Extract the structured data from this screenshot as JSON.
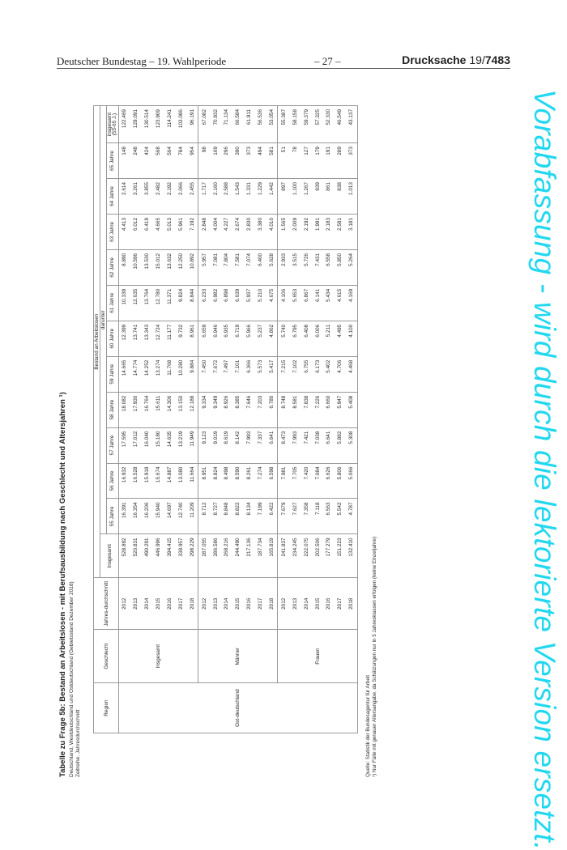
{
  "page_header": {
    "left": "Deutscher Bundestag – 19. Wahlperiode",
    "center": "– 27 –",
    "right_label": "Drucksache",
    "right_number_prefix": "19/",
    "right_number": "7483"
  },
  "watermark": "Vorabfassung - wird durch die lektorierte Version ersetzt.",
  "table_title": "Tabelle zu Frage 5b: Bestand an Arbeitslosen - mit Berufsausbildung nach Geschlecht und Altersjahren ¹)",
  "subtitle_1": "Deutschland, Westdeutschland und Ostdeutschland (Gebietsstand Dezember 2018)",
  "subtitle_2": "Zeitreihe, Jahresdurchschnitt",
  "headers": {
    "region": "Region",
    "geschlecht": "Geschlecht",
    "jahres": "Jahres-durchschnitt",
    "bestand": "Bestand an Arbeitslosen",
    "insgesamt": "Insgesamt",
    "darunter": "darunter",
    "ages": [
      "55 Jahre",
      "56 Jahre",
      "57 Jahre",
      "58 Jahre",
      "59 Jahre",
      "60 Jahre",
      "61 Jahre",
      "62 Jahre",
      "63 Jahre",
      "64 Jahre",
      "65 Jahre",
      "insgesamt (55-65 J.)"
    ]
  },
  "region": "Ost-deutschland",
  "groups": [
    {
      "label": "Insgesamt",
      "rows": [
        [
          "2012",
          "528.892",
          "16.391",
          "16.932",
          "17.595",
          "18.082",
          "14.665",
          "12.399",
          "10.339",
          "8.890",
          "4.413",
          "2.614",
          "148",
          "122.469"
        ],
        [
          "2013",
          "520.831",
          "16.354",
          "16.528",
          "17.012",
          "17.930",
          "14.774",
          "13.741",
          "12.635",
          "10.596",
          "6.012",
          "3.261",
          "248",
          "129.091"
        ],
        [
          "2014",
          "490.291",
          "16.206",
          "15.918",
          "16.040",
          "16.764",
          "14.252",
          "13.343",
          "13.764",
          "13.530",
          "6.419",
          "3.855",
          "424",
          "130.514"
        ],
        [
          "2015",
          "446.996",
          "15.940",
          "15.674",
          "15.180",
          "15.611",
          "13.274",
          "12.724",
          "12.780",
          "15.012",
          "4.665",
          "2.482",
          "568",
          "123.909"
        ],
        [
          "2016",
          "394.415",
          "14.697",
          "14.887",
          "14.635",
          "14.306",
          "11.768",
          "11.177",
          "11.371",
          "13.632",
          "5.013",
          "2.192",
          "564",
          "114.241"
        ],
        [
          "2017",
          "338.957",
          "12.740",
          "13.080",
          "13.219",
          "13.150",
          "10.280",
          "9.732",
          "9.824",
          "12.250",
          "5.961",
          "2.066",
          "784",
          "103.086"
        ],
        [
          "2018",
          "298.229",
          "11.209",
          "11.664",
          "11.949",
          "12.188",
          "9.884",
          "8.961",
          "8.844",
          "10.892",
          "7.192",
          "2.455",
          "954",
          "96.191"
        ]
      ]
    },
    {
      "label": "Männer",
      "rows": [
        [
          "2012",
          "287.055",
          "8.712",
          "8.951",
          "9.123",
          "9.334",
          "7.450",
          "6.659",
          "6.233",
          "5.957",
          "2.848",
          "1.717",
          "98",
          "67.082"
        ],
        [
          "2013",
          "286.586",
          "8.727",
          "8.824",
          "9.019",
          "9.349",
          "7.672",
          "6.946",
          "6.982",
          "7.081",
          "4.004",
          "2.160",
          "169",
          "70.932"
        ],
        [
          "2014",
          "268.216",
          "8.848",
          "8.498",
          "8.619",
          "8.926",
          "7.497",
          "6.935",
          "6.898",
          "7.804",
          "4.227",
          "2.588",
          "296",
          "71.134"
        ],
        [
          "2015",
          "244.490",
          "8.822",
          "8.590",
          "8.142",
          "8.385",
          "7.101",
          "6.719",
          "6.639",
          "7.581",
          "2.674",
          "1.543",
          "390",
          "66.584"
        ],
        [
          "2016",
          "217.136",
          "8.134",
          "8.261",
          "7.993",
          "7.646",
          "6.366",
          "5.966",
          "5.937",
          "7.074",
          "2.830",
          "1.331",
          "373",
          "61.911"
        ],
        [
          "2017",
          "187.734",
          "7.199",
          "7.274",
          "7.337",
          "7.203",
          "5.573",
          "5.237",
          "5.210",
          "6.400",
          "3.380",
          "1.229",
          "494",
          "56.536"
        ],
        [
          "2018",
          "165.819",
          "6.422",
          "6.598",
          "6.641",
          "6.780",
          "5.417",
          "4.862",
          "4.675",
          "5.628",
          "4.010",
          "1.442",
          "581",
          "53.054"
        ]
      ]
    },
    {
      "label": "Frauen",
      "rows": [
        [
          "2012",
          "241.837",
          "7.679",
          "7.981",
          "8.473",
          "8.748",
          "7.215",
          "5.740",
          "4.106",
          "2.933",
          "1.565",
          "897",
          "51",
          "55.387"
        ],
        [
          "2013",
          "234.245",
          "7.627",
          "7.705",
          "7.993",
          "8.581",
          "7.102",
          "6.795",
          "5.653",
          "3.515",
          "2.009",
          "1.100",
          "78",
          "58.158"
        ],
        [
          "2014",
          "222.075",
          "7.358",
          "7.420",
          "7.421",
          "7.838",
          "6.755",
          "6.408",
          "6.867",
          "5.726",
          "2.192",
          "1.267",
          "127",
          "59.379"
        ],
        [
          "2015",
          "202.506",
          "7.118",
          "7.084",
          "7.038",
          "7.226",
          "6.173",
          "6.006",
          "6.141",
          "7.431",
          "1.991",
          "939",
          "179",
          "57.325"
        ],
        [
          "2016",
          "177.279",
          "6.563",
          "6.626",
          "6.641",
          "6.660",
          "5.402",
          "5.211",
          "5.434",
          "6.558",
          "2.183",
          "861",
          "191",
          "52.330"
        ],
        [
          "2017",
          "151.223",
          "5.542",
          "5.806",
          "5.882",
          "5.947",
          "4.706",
          "4.495",
          "4.615",
          "5.850",
          "2.581",
          "838",
          "289",
          "46.549"
        ],
        [
          "2018",
          "132.410",
          "4.787",
          "5.066",
          "5.308",
          "5.408",
          "4.468",
          "4.100",
          "4.169",
          "5.264",
          "3.181",
          "1.013",
          "373",
          "43.137"
        ]
      ]
    }
  ],
  "source": "Quelle: Statistik der Bundesagentur für Arbeit",
  "footnote": "¹) Nur Fälle mit genauer Altersangabe, da Schätzungen nur in 5 Jahresklassen erfolgen (keine Einzeljahre)"
}
